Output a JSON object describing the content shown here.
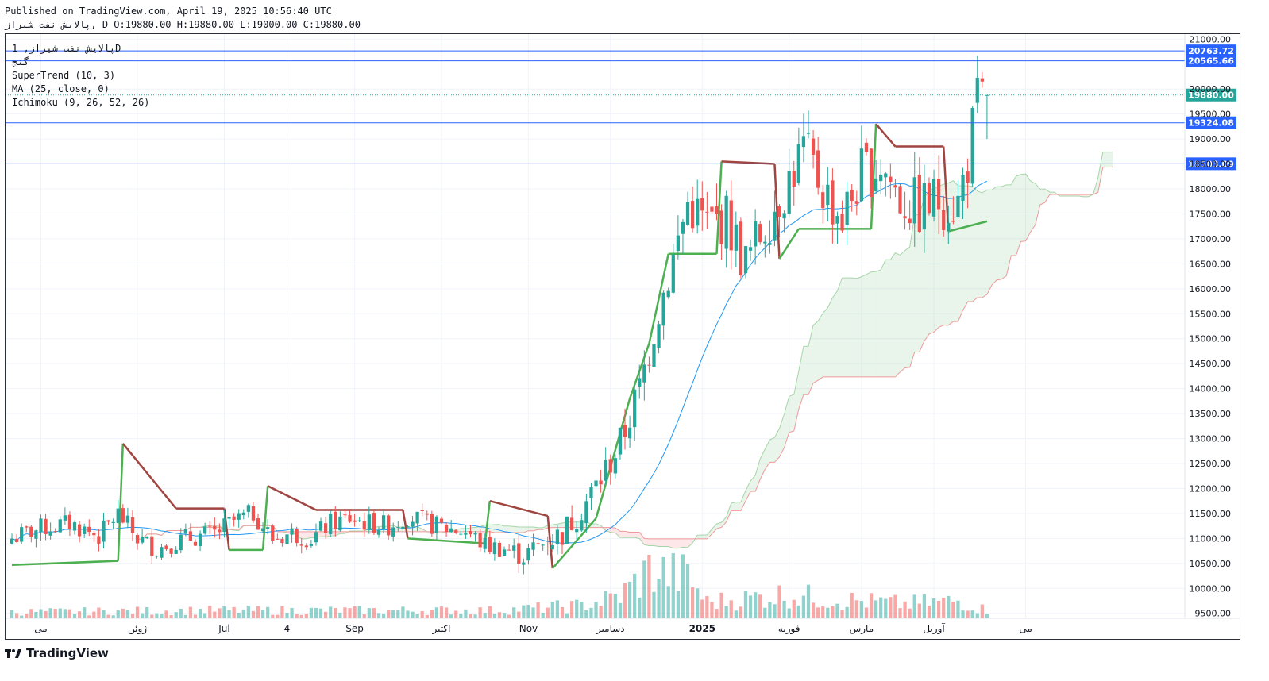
{
  "header": {
    "published": "Published on TradingView.com, April 19, 2025 10:56:40 UTC",
    "ohlc_line": "پالایش نفت شیراز, D O:19880.00 H:19880.00 L:19000.00 C:19880.00"
  },
  "legend": {
    "symbol": "پالایش نفت شیراز, 1D",
    "subtitle": "ﮔﻨﺞ",
    "supertrend": "SuperTrend (10, 3)",
    "ma": "MA (25, close, 0)",
    "ichimoku": "Ichimoku (9, 26, 52, 26)"
  },
  "brand": {
    "name": "TradingView"
  },
  "colors": {
    "up": "#26a69a",
    "down": "#ef5350",
    "st_up": "#4caf50",
    "st_down": "#a0453f",
    "ma": "#2196f3",
    "hline": "#2962ff",
    "price": "#26a69a"
  },
  "chart_data": {
    "type": "candlestick",
    "ylim": [
      9400,
      21100
    ],
    "y_ticks": [
      9500,
      10000,
      10500,
      11000,
      11500,
      12000,
      12500,
      13000,
      13500,
      14000,
      14500,
      15000,
      15500,
      16000,
      16500,
      17000,
      17500,
      18000,
      18500,
      19000,
      19500,
      20000,
      21000
    ],
    "x_labels": [
      {
        "label": "می",
        "i": 6
      },
      {
        "label": "ژوئن",
        "i": 26
      },
      {
        "label": "Jul",
        "i": 44
      },
      {
        "label": "4",
        "i": 57
      },
      {
        "label": "Sep",
        "i": 71
      },
      {
        "label": "اکتبر",
        "i": 89
      },
      {
        "label": "Nov",
        "i": 107
      },
      {
        "label": "دسامبر",
        "i": 124
      },
      {
        "label": "2025",
        "i": 143
      },
      {
        "label": "فوریه",
        "i": 161
      },
      {
        "label": "مارس",
        "i": 176
      },
      {
        "label": "آوریل",
        "i": 191
      },
      {
        "label": "می",
        "i": 210
      }
    ],
    "horizontal_lines": [
      {
        "value": 20763.72,
        "label": "20763.72"
      },
      {
        "value": 20565.66,
        "label": "20565.66"
      },
      {
        "value": 19324.08,
        "label": "19324.08"
      },
      {
        "value": 18503.09,
        "label": "18503.09"
      }
    ],
    "last_price": {
      "value": 19880,
      "label": "19880.00"
    },
    "anchors": {
      "close": [
        [
          0,
          11000
        ],
        [
          6,
          11200
        ],
        [
          12,
          11300
        ],
        [
          18,
          11050
        ],
        [
          22,
          11500
        ],
        [
          26,
          11000
        ],
        [
          30,
          10800
        ],
        [
          36,
          11000
        ],
        [
          42,
          11100
        ],
        [
          46,
          11350
        ],
        [
          50,
          11500
        ],
        [
          54,
          11000
        ],
        [
          58,
          11100
        ],
        [
          62,
          11000
        ],
        [
          66,
          11300
        ],
        [
          70,
          11400
        ],
        [
          74,
          11300
        ],
        [
          78,
          11250
        ],
        [
          82,
          11450
        ],
        [
          86,
          11300
        ],
        [
          90,
          11200
        ],
        [
          94,
          11150
        ],
        [
          98,
          10850
        ],
        [
          102,
          10800
        ],
        [
          106,
          10650
        ],
        [
          110,
          10900
        ],
        [
          114,
          11100
        ],
        [
          118,
          11600
        ],
        [
          122,
          12200
        ],
        [
          126,
          12900
        ],
        [
          130,
          14000
        ],
        [
          134,
          15600
        ],
        [
          137,
          16600
        ],
        [
          140,
          17700
        ],
        [
          144,
          17300
        ],
        [
          148,
          17400
        ],
        [
          152,
          16500
        ],
        [
          156,
          17300
        ],
        [
          160,
          18000
        ],
        [
          164,
          18800
        ],
        [
          168,
          18000
        ],
        [
          172,
          17400
        ],
        [
          176,
          18300
        ],
        [
          180,
          18500
        ],
        [
          184,
          17800
        ],
        [
          188,
          17600
        ],
        [
          192,
          17800
        ],
        [
          196,
          17700
        ],
        [
          198,
          18600
        ],
        [
          200,
          19700
        ],
        [
          202,
          19880
        ]
      ],
      "range": [
        [
          0,
          300
        ],
        [
          40,
          300
        ],
        [
          100,
          300
        ],
        [
          120,
          450
        ],
        [
          137,
          700
        ],
        [
          150,
          800
        ],
        [
          170,
          800
        ],
        [
          202,
          900
        ]
      ],
      "volume": [
        [
          0,
          200
        ],
        [
          40,
          250
        ],
        [
          60,
          250
        ],
        [
          100,
          250
        ],
        [
          118,
          400
        ],
        [
          126,
          700
        ],
        [
          132,
          1500
        ],
        [
          140,
          1300
        ],
        [
          144,
          500
        ],
        [
          160,
          750
        ],
        [
          170,
          600
        ],
        [
          185,
          450
        ],
        [
          196,
          550
        ],
        [
          202,
          250
        ]
      ],
      "supertrend": [
        [
          0,
          10470,
          "up"
        ],
        [
          22,
          10550,
          "up"
        ],
        [
          23,
          12900,
          "down"
        ],
        [
          34,
          11600,
          "down"
        ],
        [
          44,
          11600,
          "down"
        ],
        [
          45,
          10770,
          "up"
        ],
        [
          52,
          10770,
          "up"
        ],
        [
          53,
          12050,
          "down"
        ],
        [
          63,
          11570,
          "down"
        ],
        [
          81,
          11570,
          "down"
        ],
        [
          82,
          11000,
          "up"
        ],
        [
          98,
          10900,
          "up"
        ],
        [
          99,
          11750,
          "down"
        ],
        [
          111,
          11450,
          "down"
        ],
        [
          112,
          10400,
          "up"
        ],
        [
          121,
          11400,
          "up"
        ],
        [
          128,
          13800,
          "up"
        ],
        [
          132,
          14900,
          "up"
        ],
        [
          136,
          16700,
          "up"
        ],
        [
          146,
          16700,
          "up"
        ],
        [
          147,
          18550,
          "down"
        ],
        [
          158,
          18500,
          "down"
        ],
        [
          159,
          16600,
          "up"
        ],
        [
          163,
          17200,
          "up"
        ],
        [
          178,
          17200,
          "up"
        ],
        [
          179,
          19300,
          "down"
        ],
        [
          183,
          18850,
          "down"
        ],
        [
          193,
          18850,
          "down"
        ],
        [
          194,
          17150,
          "up"
        ],
        [
          202,
          17350,
          "up"
        ]
      ]
    },
    "note_scale": "daily bars, 203 visible sessions"
  }
}
